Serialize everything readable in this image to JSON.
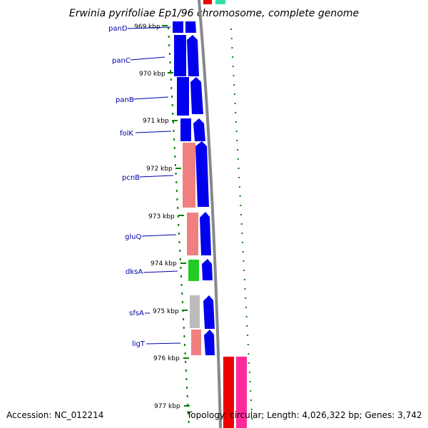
{
  "title": "Erwinia pyrifoliae Ep1/96 chromosome, complete genome",
  "footer": {
    "accession": "Accession: NC_012214",
    "topology": "Topology: circular; Length: 4,026,322 bp; Genes: 3,742"
  },
  "colors": {
    "cds": "#0000ee",
    "rna_gene": "#f08080",
    "gc_skew": "#008000",
    "backbone": "#888888",
    "label": "#0000aa",
    "green_feature": "#22cc22",
    "grey_feature": "#bbbbbb",
    "red_feature": "#ee0000",
    "pink_feature": "#ff2a9a",
    "teal_feature": "#33ddaa"
  },
  "ticks": [
    {
      "label": "969 kbp"
    },
    {
      "label": "970 kbp"
    },
    {
      "label": "971 kbp"
    },
    {
      "label": "972 kbp"
    },
    {
      "label": "973 kbp"
    },
    {
      "label": "974 kbp"
    },
    {
      "label": "975 kbp"
    },
    {
      "label": "976 kbp"
    },
    {
      "label": "977 kbp"
    }
  ],
  "genes": [
    {
      "name": "panD"
    },
    {
      "name": "panC"
    },
    {
      "name": "panB"
    },
    {
      "name": "folK"
    },
    {
      "name": "pcnB"
    },
    {
      "name": "gluQ"
    },
    {
      "name": "dksA"
    },
    {
      "name": "sfsA"
    },
    {
      "name": "ligT"
    }
  ]
}
